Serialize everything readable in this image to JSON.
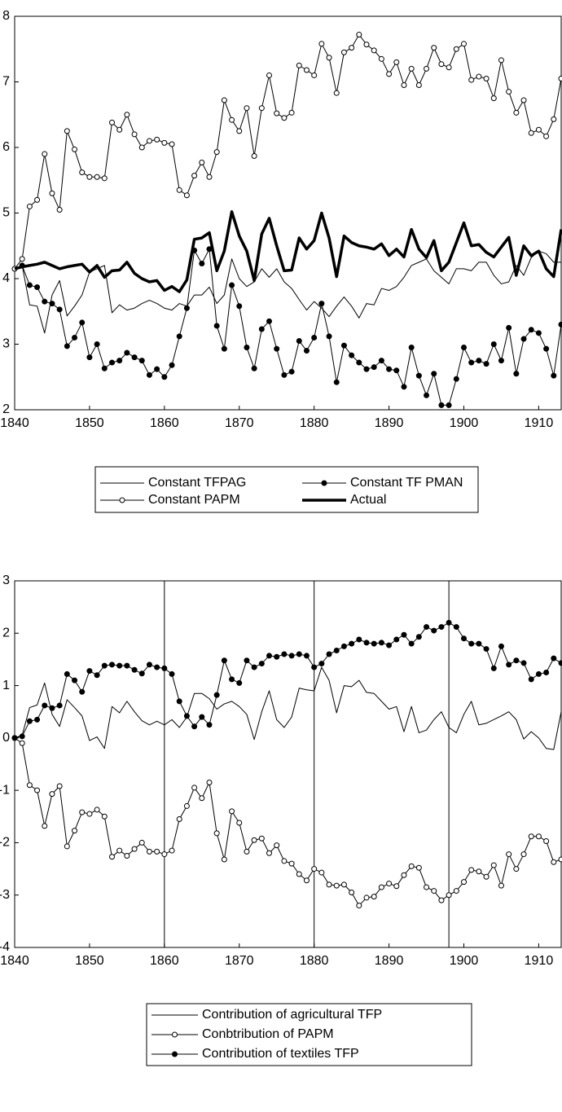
{
  "chart_data": [
    {
      "type": "line",
      "x": [
        1840,
        1841,
        1842,
        1843,
        1844,
        1845,
        1846,
        1847,
        1848,
        1849,
        1850,
        1851,
        1852,
        1853,
        1854,
        1855,
        1856,
        1857,
        1858,
        1859,
        1860,
        1861,
        1862,
        1863,
        1864,
        1865,
        1866,
        1867,
        1868,
        1869,
        1870,
        1871,
        1872,
        1873,
        1874,
        1875,
        1876,
        1877,
        1878,
        1879,
        1880,
        1881,
        1882,
        1883,
        1884,
        1885,
        1886,
        1887,
        1888,
        1889,
        1890,
        1891,
        1892,
        1893,
        1894,
        1895,
        1896,
        1897,
        1898,
        1899,
        1900,
        1901,
        1902,
        1903,
        1904,
        1905,
        1906,
        1907,
        1908,
        1909,
        1910,
        1911,
        1912,
        1913
      ],
      "xlim": [
        1840,
        1913
      ],
      "xticks": [
        1840,
        1850,
        1860,
        1870,
        1880,
        1890,
        1900,
        1910
      ],
      "ylim": [
        2,
        8
      ],
      "yticks": [
        2,
        3,
        4,
        5,
        6,
        7,
        8
      ],
      "series": [
        {
          "name": "Constant TFPAG",
          "color": "#000000",
          "line_width": 1,
          "marker": "none",
          "values": [
            4.15,
            4.2,
            3.6,
            3.58,
            3.17,
            3.75,
            3.97,
            3.43,
            3.58,
            3.75,
            4.1,
            4.15,
            4.2,
            3.48,
            3.6,
            3.52,
            3.55,
            3.62,
            3.67,
            3.62,
            3.55,
            3.52,
            3.62,
            3.58,
            3.75,
            3.75,
            3.87,
            3.62,
            3.75,
            4.3,
            4.0,
            3.88,
            3.95,
            4.15,
            4.02,
            4.15,
            3.95,
            3.85,
            3.68,
            3.52,
            3.65,
            3.55,
            3.42,
            3.58,
            3.72,
            3.58,
            3.4,
            3.62,
            3.6,
            3.85,
            3.82,
            3.88,
            4.02,
            4.2,
            4.25,
            4.3,
            4.12,
            4.02,
            3.92,
            4.15,
            4.15,
            4.12,
            4.25,
            4.25,
            4.05,
            3.92,
            3.95,
            4.2,
            4.05,
            4.32,
            4.42,
            4.38,
            4.25,
            4.25
          ]
        },
        {
          "name": "Constant TF PMAN",
          "color": "#000000",
          "line_width": 1,
          "marker": "filled",
          "values": [
            4.15,
            4.2,
            3.9,
            3.87,
            3.65,
            3.62,
            3.53,
            2.97,
            3.1,
            3.33,
            2.8,
            3.0,
            2.63,
            2.72,
            2.75,
            2.87,
            2.8,
            2.75,
            2.53,
            2.62,
            2.5,
            2.68,
            3.12,
            3.55,
            4.43,
            4.23,
            4.45,
            3.28,
            2.93,
            3.9,
            3.58,
            2.95,
            2.63,
            3.23,
            3.35,
            2.93,
            2.53,
            2.58,
            3.05,
            2.9,
            3.1,
            3.62,
            3.12,
            2.42,
            2.98,
            2.83,
            2.72,
            2.62,
            2.65,
            2.75,
            2.62,
            2.6,
            2.35,
            2.95,
            2.52,
            2.22,
            2.55,
            2.07,
            2.07,
            2.47,
            2.95,
            2.72,
            2.75,
            2.7,
            3.0,
            2.75,
            3.25,
            2.55,
            3.08,
            3.22,
            3.17,
            2.93,
            2.52,
            3.3
          ]
        },
        {
          "name": "Constant PAPM",
          "color": "#000000",
          "line_width": 1,
          "marker": "open",
          "values": [
            4.15,
            4.3,
            5.1,
            5.2,
            5.9,
            5.3,
            5.05,
            6.25,
            5.97,
            5.62,
            5.55,
            5.55,
            5.53,
            6.38,
            6.27,
            6.5,
            6.2,
            6.0,
            6.1,
            6.12,
            6.07,
            6.05,
            5.35,
            5.27,
            5.57,
            5.77,
            5.55,
            5.93,
            6.72,
            6.42,
            6.25,
            6.6,
            5.87,
            6.6,
            7.1,
            6.52,
            6.45,
            6.53,
            7.25,
            7.18,
            7.1,
            7.58,
            7.37,
            6.83,
            7.45,
            7.52,
            7.72,
            7.57,
            7.48,
            7.35,
            7.12,
            7.3,
            6.95,
            7.2,
            6.95,
            7.2,
            7.52,
            7.27,
            7.22,
            7.5,
            7.58,
            7.03,
            7.08,
            7.05,
            6.75,
            7.33,
            6.85,
            6.53,
            6.72,
            6.22,
            6.27,
            6.17,
            6.43,
            7.05
          ]
        },
        {
          "name": "Actual",
          "color": "#000000",
          "line_width": 3.5,
          "marker": "none",
          "values": [
            4.15,
            4.18,
            4.2,
            4.22,
            4.25,
            4.2,
            4.15,
            4.18,
            4.2,
            4.22,
            4.1,
            4.2,
            4.02,
            4.12,
            4.13,
            4.25,
            4.08,
            4.0,
            3.95,
            3.97,
            3.82,
            3.88,
            3.8,
            3.98,
            4.6,
            4.62,
            4.7,
            4.12,
            4.42,
            5.02,
            4.65,
            4.42,
            3.97,
            4.68,
            4.92,
            4.5,
            4.12,
            4.13,
            4.62,
            4.45,
            4.58,
            5.0,
            4.62,
            4.03,
            4.65,
            4.55,
            4.5,
            4.48,
            4.45,
            4.53,
            4.35,
            4.45,
            4.33,
            4.75,
            4.45,
            4.32,
            4.58,
            4.12,
            4.25,
            4.55,
            4.85,
            4.5,
            4.52,
            4.4,
            4.33,
            4.48,
            4.63,
            4.05,
            4.5,
            4.35,
            4.42,
            4.15,
            4.03,
            4.75
          ]
        }
      ]
    },
    {
      "type": "line",
      "x": [
        1840,
        1841,
        1842,
        1843,
        1844,
        1845,
        1846,
        1847,
        1848,
        1849,
        1850,
        1851,
        1852,
        1853,
        1854,
        1855,
        1856,
        1857,
        1858,
        1859,
        1860,
        1861,
        1862,
        1863,
        1864,
        1865,
        1866,
        1867,
        1868,
        1869,
        1870,
        1871,
        1872,
        1873,
        1874,
        1875,
        1876,
        1877,
        1878,
        1879,
        1880,
        1881,
        1882,
        1883,
        1884,
        1885,
        1886,
        1887,
        1888,
        1889,
        1890,
        1891,
        1892,
        1893,
        1894,
        1895,
        1896,
        1897,
        1898,
        1899,
        1900,
        1901,
        1902,
        1903,
        1904,
        1905,
        1906,
        1907,
        1908,
        1909,
        1910,
        1911,
        1912,
        1913
      ],
      "xlim": [
        1840,
        1913
      ],
      "xticks": [
        1840,
        1850,
        1860,
        1870,
        1880,
        1890,
        1900,
        1910
      ],
      "ylim": [
        -4,
        3
      ],
      "yticks": [
        -4,
        -3,
        -2,
        -1,
        0,
        1,
        2,
        3
      ],
      "vlines": [
        1860,
        1880,
        1898
      ],
      "series": [
        {
          "name": "Contribution of agricultural TFP",
          "color": "#000000",
          "line_width": 1,
          "marker": "none",
          "values": [
            0,
            0.05,
            0.58,
            0.63,
            1.05,
            0.45,
            0.22,
            0.73,
            0.58,
            0.42,
            -0.05,
            0.02,
            -0.2,
            0.6,
            0.48,
            0.7,
            0.5,
            0.33,
            0.25,
            0.32,
            0.25,
            0.35,
            0.2,
            0.4,
            0.85,
            0.85,
            0.75,
            0.55,
            0.65,
            0.7,
            0.6,
            0.45,
            -0.03,
            0.5,
            0.9,
            0.35,
            0.2,
            0.4,
            0.95,
            0.92,
            0.9,
            1.35,
            1.1,
            0.48,
            1.0,
            0.98,
            1.1,
            0.87,
            0.85,
            0.7,
            0.55,
            0.6,
            0.12,
            0.6,
            0.1,
            0.15,
            0.35,
            0.5,
            0.2,
            0.1,
            0.45,
            0.7,
            0.25,
            0.28,
            0.35,
            0.42,
            0.5,
            0.35,
            -0.02,
            0.12,
            0.0,
            -0.2,
            -0.22,
            0.5
          ]
        },
        {
          "name": "Conbtribution of PAPM",
          "color": "#000000",
          "line_width": 1,
          "marker": "open",
          "values": [
            0,
            -0.1,
            -0.9,
            -1.0,
            -1.68,
            -1.07,
            -0.92,
            -2.07,
            -1.77,
            -1.42,
            -1.45,
            -1.37,
            -1.5,
            -2.27,
            -2.15,
            -2.25,
            -2.12,
            -2.0,
            -2.17,
            -2.17,
            -2.22,
            -2.15,
            -1.55,
            -1.3,
            -0.95,
            -1.15,
            -0.85,
            -1.82,
            -2.32,
            -1.4,
            -1.62,
            -2.17,
            -1.95,
            -1.92,
            -2.2,
            -2.05,
            -2.35,
            -2.4,
            -2.6,
            -2.72,
            -2.5,
            -2.57,
            -2.8,
            -2.82,
            -2.8,
            -2.95,
            -3.2,
            -3.05,
            -3.03,
            -2.85,
            -2.78,
            -2.83,
            -2.62,
            -2.45,
            -2.48,
            -2.85,
            -2.92,
            -3.1,
            -3.0,
            -2.92,
            -2.75,
            -2.52,
            -2.55,
            -2.65,
            -2.43,
            -2.82,
            -2.22,
            -2.5,
            -2.22,
            -1.88,
            -1.88,
            -1.97,
            -2.37,
            -2.32
          ]
        },
        {
          "name": "Contribution of textiles TFP",
          "color": "#000000",
          "line_width": 1,
          "marker": "filled",
          "values": [
            0,
            0.03,
            0.32,
            0.35,
            0.62,
            0.57,
            0.62,
            1.22,
            1.1,
            0.88,
            1.28,
            1.2,
            1.38,
            1.4,
            1.38,
            1.38,
            1.3,
            1.23,
            1.4,
            1.35,
            1.33,
            1.22,
            0.7,
            0.42,
            0.22,
            0.4,
            0.25,
            0.82,
            1.48,
            1.12,
            1.05,
            1.48,
            1.35,
            1.42,
            1.57,
            1.55,
            1.6,
            1.57,
            1.6,
            1.57,
            1.35,
            1.42,
            1.6,
            1.67,
            1.75,
            1.8,
            1.88,
            1.82,
            1.8,
            1.82,
            1.77,
            1.88,
            1.97,
            1.8,
            1.93,
            2.12,
            2.05,
            2.12,
            2.2,
            2.12,
            1.9,
            1.8,
            1.8,
            1.7,
            1.33,
            1.75,
            1.4,
            1.48,
            1.43,
            1.12,
            1.22,
            1.25,
            1.52,
            1.43
          ]
        }
      ]
    }
  ]
}
